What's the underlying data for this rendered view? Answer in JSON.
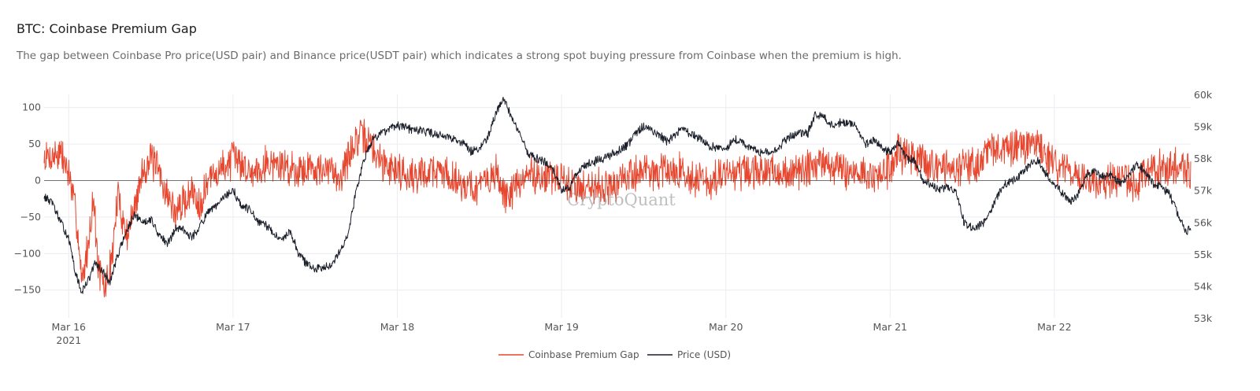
{
  "title": "BTC: Coinbase Premium Gap",
  "subtitle": "The gap between Coinbase Pro price(USD pair) and Binance price(USDT pair) which indicates a strong spot buying pressure from Coinbase when the premium is high.",
  "watermark": "CryptoQuant",
  "colors": {
    "premium": "#e8472f",
    "price": "#1b1f2a",
    "grid": "#ececf2",
    "zero": "#444444"
  },
  "chart_data": {
    "type": "line",
    "title": "BTC: Coinbase Premium Gap",
    "x_ticks": [
      "Mar 16",
      "Mar 17",
      "Mar 18",
      "Mar 19",
      "Mar 20",
      "Mar 21",
      "Mar 22"
    ],
    "x_year_label": "2021",
    "xlim_days": [
      15.85,
      22.83
    ],
    "y_left": {
      "ticks": [
        100,
        50,
        0,
        -50,
        -100,
        -150
      ],
      "tick_labels": [
        "100",
        "50",
        "0",
        "−50",
        "−100",
        "−150"
      ],
      "range": [
        -188,
        118
      ]
    },
    "y_right": {
      "ticks": [
        60000,
        59000,
        58000,
        57000,
        56000,
        55000,
        54000,
        53000
      ],
      "tick_labels": [
        "60k",
        "59k",
        "58k",
        "57k",
        "56k",
        "55k",
        "54k",
        "53k"
      ],
      "range": [
        53000,
        60000
      ]
    },
    "legend": {
      "position": "bottom-center",
      "items": [
        "Coinbase Premium Gap",
        "Price (USD)"
      ]
    },
    "series": [
      {
        "name": "Coinbase Premium Gap",
        "axis": "left",
        "style": "noisy",
        "points": [
          [
            15.85,
            30
          ],
          [
            15.95,
            38
          ],
          [
            16.0,
            10
          ],
          [
            16.05,
            -55
          ],
          [
            16.08,
            -140
          ],
          [
            16.12,
            -85
          ],
          [
            16.15,
            -20
          ],
          [
            16.18,
            -120
          ],
          [
            16.22,
            -150
          ],
          [
            16.26,
            -110
          ],
          [
            16.3,
            -20
          ],
          [
            16.35,
            -75
          ],
          [
            16.4,
            -40
          ],
          [
            16.45,
            15
          ],
          [
            16.5,
            30
          ],
          [
            16.55,
            10
          ],
          [
            16.6,
            -20
          ],
          [
            16.65,
            -45
          ],
          [
            16.7,
            -30
          ],
          [
            16.75,
            -15
          ],
          [
            16.8,
            -30
          ],
          [
            16.85,
            0
          ],
          [
            16.9,
            10
          ],
          [
            16.95,
            20
          ],
          [
            17.0,
            30
          ],
          [
            17.05,
            25
          ],
          [
            17.1,
            10
          ],
          [
            17.2,
            25
          ],
          [
            17.3,
            20
          ],
          [
            17.4,
            15
          ],
          [
            17.5,
            20
          ],
          [
            17.55,
            10
          ],
          [
            17.6,
            15
          ],
          [
            17.65,
            5
          ],
          [
            17.7,
            30
          ],
          [
            17.75,
            55
          ],
          [
            17.8,
            60
          ],
          [
            17.85,
            45
          ],
          [
            17.9,
            25
          ],
          [
            18.0,
            15
          ],
          [
            18.1,
            5
          ],
          [
            18.2,
            15
          ],
          [
            18.3,
            10
          ],
          [
            18.4,
            -5
          ],
          [
            18.5,
            -10
          ],
          [
            18.6,
            10
          ],
          [
            18.65,
            -20
          ],
          [
            18.7,
            -15
          ],
          [
            18.75,
            -5
          ],
          [
            18.8,
            10
          ],
          [
            18.9,
            5
          ],
          [
            19.0,
            0
          ],
          [
            19.1,
            -10
          ],
          [
            19.2,
            -5
          ],
          [
            19.3,
            -10
          ],
          [
            19.4,
            5
          ],
          [
            19.5,
            15
          ],
          [
            19.6,
            10
          ],
          [
            19.7,
            15
          ],
          [
            19.8,
            5
          ],
          [
            19.9,
            -5
          ],
          [
            20.0,
            10
          ],
          [
            20.2,
            10
          ],
          [
            20.4,
            10
          ],
          [
            20.5,
            15
          ],
          [
            20.6,
            25
          ],
          [
            20.7,
            15
          ],
          [
            20.8,
            10
          ],
          [
            20.9,
            5
          ],
          [
            21.0,
            15
          ],
          [
            21.05,
            40
          ],
          [
            21.1,
            30
          ],
          [
            21.2,
            25
          ],
          [
            21.3,
            20
          ],
          [
            21.4,
            15
          ],
          [
            21.5,
            20
          ],
          [
            21.6,
            40
          ],
          [
            21.7,
            45
          ],
          [
            21.8,
            45
          ],
          [
            21.9,
            50
          ],
          [
            21.95,
            35
          ],
          [
            22.0,
            20
          ],
          [
            22.1,
            10
          ],
          [
            22.2,
            5
          ],
          [
            22.3,
            -5
          ],
          [
            22.4,
            0
          ],
          [
            22.5,
            -5
          ],
          [
            22.55,
            5
          ],
          [
            22.6,
            15
          ],
          [
            22.7,
            20
          ],
          [
            22.8,
            15
          ],
          [
            22.83,
            10
          ]
        ]
      },
      {
        "name": "Price (USD)",
        "axis": "right",
        "style": "fine",
        "points": [
          [
            15.85,
            56800
          ],
          [
            15.9,
            56600
          ],
          [
            15.95,
            56000
          ],
          [
            16.0,
            55500
          ],
          [
            16.04,
            54400
          ],
          [
            16.08,
            53800
          ],
          [
            16.12,
            54200
          ],
          [
            16.16,
            54700
          ],
          [
            16.2,
            54500
          ],
          [
            16.25,
            54100
          ],
          [
            16.3,
            55000
          ],
          [
            16.35,
            55700
          ],
          [
            16.4,
            56200
          ],
          [
            16.45,
            56000
          ],
          [
            16.5,
            56100
          ],
          [
            16.55,
            55600
          ],
          [
            16.6,
            55300
          ],
          [
            16.65,
            55800
          ],
          [
            16.7,
            55800
          ],
          [
            16.75,
            55500
          ],
          [
            16.8,
            55900
          ],
          [
            16.85,
            56300
          ],
          [
            16.9,
            56500
          ],
          [
            16.95,
            56800
          ],
          [
            17.0,
            57000
          ],
          [
            17.05,
            56500
          ],
          [
            17.1,
            56400
          ],
          [
            17.15,
            56000
          ],
          [
            17.2,
            55900
          ],
          [
            17.25,
            55600
          ],
          [
            17.3,
            55500
          ],
          [
            17.35,
            55700
          ],
          [
            17.4,
            55000
          ],
          [
            17.45,
            54700
          ],
          [
            17.5,
            54500
          ],
          [
            17.55,
            54600
          ],
          [
            17.6,
            54700
          ],
          [
            17.65,
            55100
          ],
          [
            17.7,
            55600
          ],
          [
            17.75,
            57000
          ],
          [
            17.8,
            58000
          ],
          [
            17.85,
            58600
          ],
          [
            17.9,
            58800
          ],
          [
            17.95,
            58900
          ],
          [
            18.0,
            59000
          ],
          [
            18.1,
            58900
          ],
          [
            18.2,
            58800
          ],
          [
            18.3,
            58700
          ],
          [
            18.4,
            58500
          ],
          [
            18.45,
            58200
          ],
          [
            18.5,
            58300
          ],
          [
            18.55,
            58600
          ],
          [
            18.6,
            59400
          ],
          [
            18.65,
            59900
          ],
          [
            18.7,
            59200
          ],
          [
            18.75,
            58700
          ],
          [
            18.8,
            58100
          ],
          [
            18.85,
            58000
          ],
          [
            18.9,
            57900
          ],
          [
            18.95,
            57600
          ],
          [
            19.0,
            57000
          ],
          [
            19.05,
            57100
          ],
          [
            19.1,
            57600
          ],
          [
            19.15,
            57800
          ],
          [
            19.2,
            57900
          ],
          [
            19.3,
            58100
          ],
          [
            19.4,
            58400
          ],
          [
            19.45,
            58800
          ],
          [
            19.5,
            59000
          ],
          [
            19.6,
            58700
          ],
          [
            19.65,
            58500
          ],
          [
            19.7,
            58800
          ],
          [
            19.75,
            58900
          ],
          [
            19.8,
            58700
          ],
          [
            19.85,
            58600
          ],
          [
            19.9,
            58400
          ],
          [
            19.95,
            58300
          ],
          [
            20.0,
            58300
          ],
          [
            20.05,
            58600
          ],
          [
            20.1,
            58500
          ],
          [
            20.2,
            58200
          ],
          [
            20.3,
            58200
          ],
          [
            20.35,
            58500
          ],
          [
            20.4,
            58700
          ],
          [
            20.45,
            58800
          ],
          [
            20.5,
            58800
          ],
          [
            20.55,
            59400
          ],
          [
            20.6,
            59300
          ],
          [
            20.65,
            59000
          ],
          [
            20.7,
            59100
          ],
          [
            20.75,
            59100
          ],
          [
            20.8,
            59000
          ],
          [
            20.85,
            58400
          ],
          [
            20.9,
            58600
          ],
          [
            20.95,
            58300
          ],
          [
            21.0,
            58200
          ],
          [
            21.05,
            58500
          ],
          [
            21.1,
            58000
          ],
          [
            21.15,
            57900
          ],
          [
            21.2,
            57300
          ],
          [
            21.25,
            57200
          ],
          [
            21.3,
            57000
          ],
          [
            21.35,
            57100
          ],
          [
            21.4,
            57000
          ],
          [
            21.45,
            56000
          ],
          [
            21.5,
            55800
          ],
          [
            21.55,
            55900
          ],
          [
            21.6,
            56200
          ],
          [
            21.65,
            56800
          ],
          [
            21.7,
            57200
          ],
          [
            21.75,
            57300
          ],
          [
            21.8,
            57500
          ],
          [
            21.85,
            57800
          ],
          [
            21.9,
            57900
          ],
          [
            21.95,
            57500
          ],
          [
            22.0,
            57200
          ],
          [
            22.05,
            56900
          ],
          [
            22.1,
            56600
          ],
          [
            22.15,
            56900
          ],
          [
            22.2,
            57500
          ],
          [
            22.25,
            57600
          ],
          [
            22.3,
            57400
          ],
          [
            22.35,
            57500
          ],
          [
            22.4,
            57200
          ],
          [
            22.45,
            57400
          ],
          [
            22.5,
            57800
          ],
          [
            22.55,
            57600
          ],
          [
            22.6,
            57200
          ],
          [
            22.65,
            57100
          ],
          [
            22.7,
            56900
          ],
          [
            22.75,
            56300
          ],
          [
            22.78,
            55900
          ],
          [
            22.8,
            55700
          ],
          [
            22.83,
            55800
          ]
        ]
      }
    ]
  }
}
